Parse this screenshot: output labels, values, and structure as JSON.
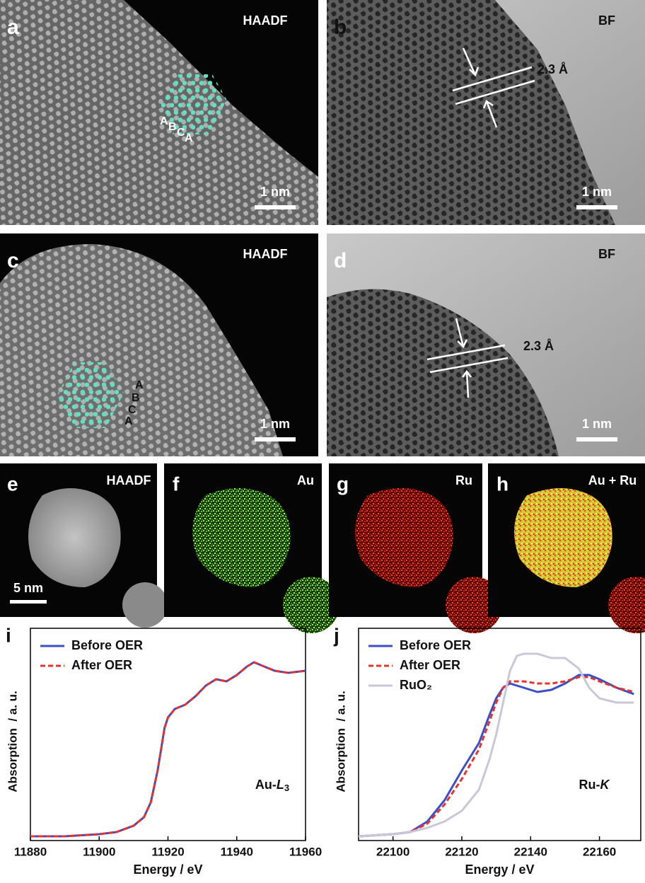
{
  "panels": [
    {
      "letter": "a",
      "label": "HAADF",
      "scale_bar": "1 nm",
      "stacking": [
        "A",
        "B",
        "C",
        "A"
      ]
    },
    {
      "letter": "b",
      "label": "BF",
      "scale_bar": "1 nm",
      "spacing": "2.3 Å"
    },
    {
      "letter": "c",
      "label": "HAADF",
      "scale_bar": "1 nm",
      "stacking": [
        "A",
        "B",
        "C",
        "A"
      ]
    },
    {
      "letter": "d",
      "label": "BF",
      "scale_bar": "1 nm",
      "spacing": "2.3 Å"
    },
    {
      "letter": "e",
      "label": "HAADF",
      "scale_bar": "5 nm"
    },
    {
      "letter": "f",
      "label": "Au"
    },
    {
      "letter": "g",
      "label": "Ru"
    },
    {
      "letter": "h",
      "label": "Au + Ru"
    }
  ],
  "chart_data": [
    {
      "type": "line",
      "panel": "i",
      "xlabel": "Energy / eV",
      "ylabel": "Absorption  / a. u.",
      "annotation": [
        "Au-",
        "L",
        "3"
      ],
      "legend": "upper left",
      "xlim": [
        11880,
        11960
      ],
      "ylim": [
        0,
        1
      ],
      "xticks": [
        11880,
        11900,
        11920,
        11940,
        11960
      ],
      "x": [
        11880,
        11890,
        11900,
        11905,
        11910,
        11913,
        11915,
        11917,
        11918,
        11919,
        11920,
        11922,
        11925,
        11928,
        11931,
        11934,
        11937,
        11940,
        11943,
        11945,
        11948,
        11951,
        11955,
        11960
      ],
      "series": [
        {
          "name": "Before OER",
          "color": "#3a4fc8",
          "linestyle": "solid",
          "values": [
            0.02,
            0.02,
            0.03,
            0.04,
            0.07,
            0.11,
            0.18,
            0.33,
            0.43,
            0.53,
            0.58,
            0.62,
            0.64,
            0.68,
            0.73,
            0.76,
            0.75,
            0.78,
            0.82,
            0.84,
            0.82,
            0.8,
            0.79,
            0.8
          ]
        },
        {
          "name": "After OER",
          "color": "#e8322a",
          "linestyle": "dashed",
          "values": [
            0.02,
            0.02,
            0.03,
            0.04,
            0.07,
            0.11,
            0.18,
            0.33,
            0.43,
            0.53,
            0.58,
            0.62,
            0.64,
            0.68,
            0.73,
            0.76,
            0.75,
            0.78,
            0.82,
            0.84,
            0.82,
            0.8,
            0.79,
            0.8
          ]
        }
      ]
    },
    {
      "type": "line",
      "panel": "j",
      "xlabel": "Energy / eV",
      "ylabel": "Absorption  / a. u.",
      "annotation": [
        "Ru-",
        "K",
        ""
      ],
      "legend": "upper left",
      "xlim": [
        22090,
        22172
      ],
      "ylim": [
        0,
        1
      ],
      "xticks": [
        22100,
        22120,
        22140,
        22160
      ],
      "x": [
        22090,
        22100,
        22105,
        22110,
        22115,
        22120,
        22125,
        22128,
        22130,
        22132,
        22134,
        22136,
        22138,
        22142,
        22146,
        22150,
        22154,
        22157,
        22160,
        22165,
        22170
      ],
      "series": [
        {
          "name": "Before OER",
          "color": "#3a4fc8",
          "linestyle": "solid",
          "values": [
            0.02,
            0.03,
            0.04,
            0.09,
            0.19,
            0.33,
            0.46,
            0.59,
            0.67,
            0.72,
            0.74,
            0.73,
            0.72,
            0.7,
            0.71,
            0.74,
            0.78,
            0.78,
            0.76,
            0.72,
            0.69
          ]
        },
        {
          "name": "After OER",
          "color": "#e8322a",
          "linestyle": "dashed",
          "values": [
            0.02,
            0.03,
            0.04,
            0.08,
            0.17,
            0.29,
            0.43,
            0.56,
            0.65,
            0.72,
            0.75,
            0.75,
            0.75,
            0.74,
            0.74,
            0.75,
            0.77,
            0.77,
            0.75,
            0.72,
            0.7
          ]
        },
        {
          "name": "RuO₂",
          "color": "#c8c8da",
          "linestyle": "solid",
          "values": [
            0.02,
            0.03,
            0.04,
            0.06,
            0.09,
            0.14,
            0.24,
            0.38,
            0.5,
            0.65,
            0.8,
            0.87,
            0.88,
            0.88,
            0.86,
            0.86,
            0.81,
            0.72,
            0.67,
            0.65,
            0.65
          ]
        }
      ]
    }
  ]
}
